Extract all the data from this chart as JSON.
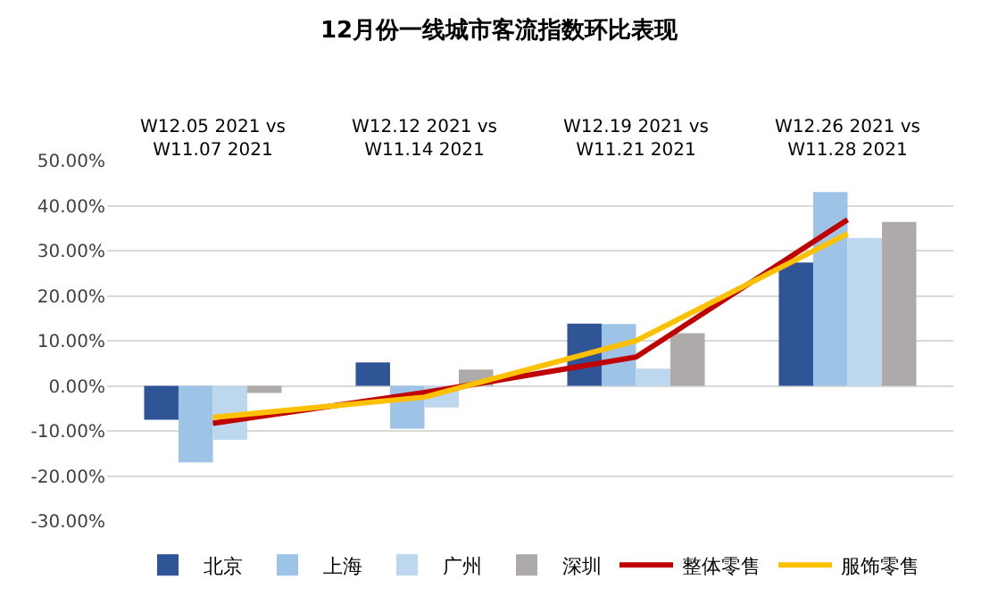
{
  "chart_data": {
    "type": "bar",
    "title": "12月份一线城市客流指数环比表现",
    "categories": [
      "W12.05 2021 vs\nW11.07 2021",
      "W12.12 2021 vs\nW11.14 2021",
      "W12.19 2021 vs\nW11.21 2021",
      "W12.26 2021 vs\nW11.28 2021"
    ],
    "series": [
      {
        "name": "北京",
        "color": "#2f5597",
        "values": [
          -7.5,
          5.2,
          13.8,
          27.4
        ]
      },
      {
        "name": "上海",
        "color": "#9dc3e6",
        "values": [
          -17,
          -9.5,
          13.7,
          43
        ]
      },
      {
        "name": "广州",
        "color": "#bdd7ee",
        "values": [
          -12,
          -4.8,
          3.8,
          32.8
        ]
      },
      {
        "name": "深圳",
        "color": "#aeaaaa",
        "values": [
          -1.6,
          3.6,
          11.7,
          36.4
        ]
      },
      {
        "name": "整体零售",
        "color": "#c00000",
        "type": "line",
        "values": [
          -8.3,
          -1.5,
          6.4,
          36.9
        ]
      },
      {
        "name": "服饰零售",
        "color": "#ffc000",
        "type": "line",
        "values": [
          -7,
          -2.5,
          10,
          33.8
        ]
      }
    ],
    "ylim": [
      -30,
      50
    ],
    "yticks": [
      {
        "value": -30,
        "label": "-30.00%"
      },
      {
        "value": -20,
        "label": "-20.00%"
      },
      {
        "value": -10,
        "label": "-10.00%"
      },
      {
        "value": 0,
        "label": "0.00%"
      },
      {
        "value": 10,
        "label": "10.00%"
      },
      {
        "value": 20,
        "label": "20.00%"
      },
      {
        "value": 30,
        "label": "30.00%"
      },
      {
        "value": 40,
        "label": "40.00%"
      },
      {
        "value": 50,
        "label": "50.00%"
      }
    ],
    "grid": "y",
    "legend": "bottom",
    "marker": "none"
  }
}
